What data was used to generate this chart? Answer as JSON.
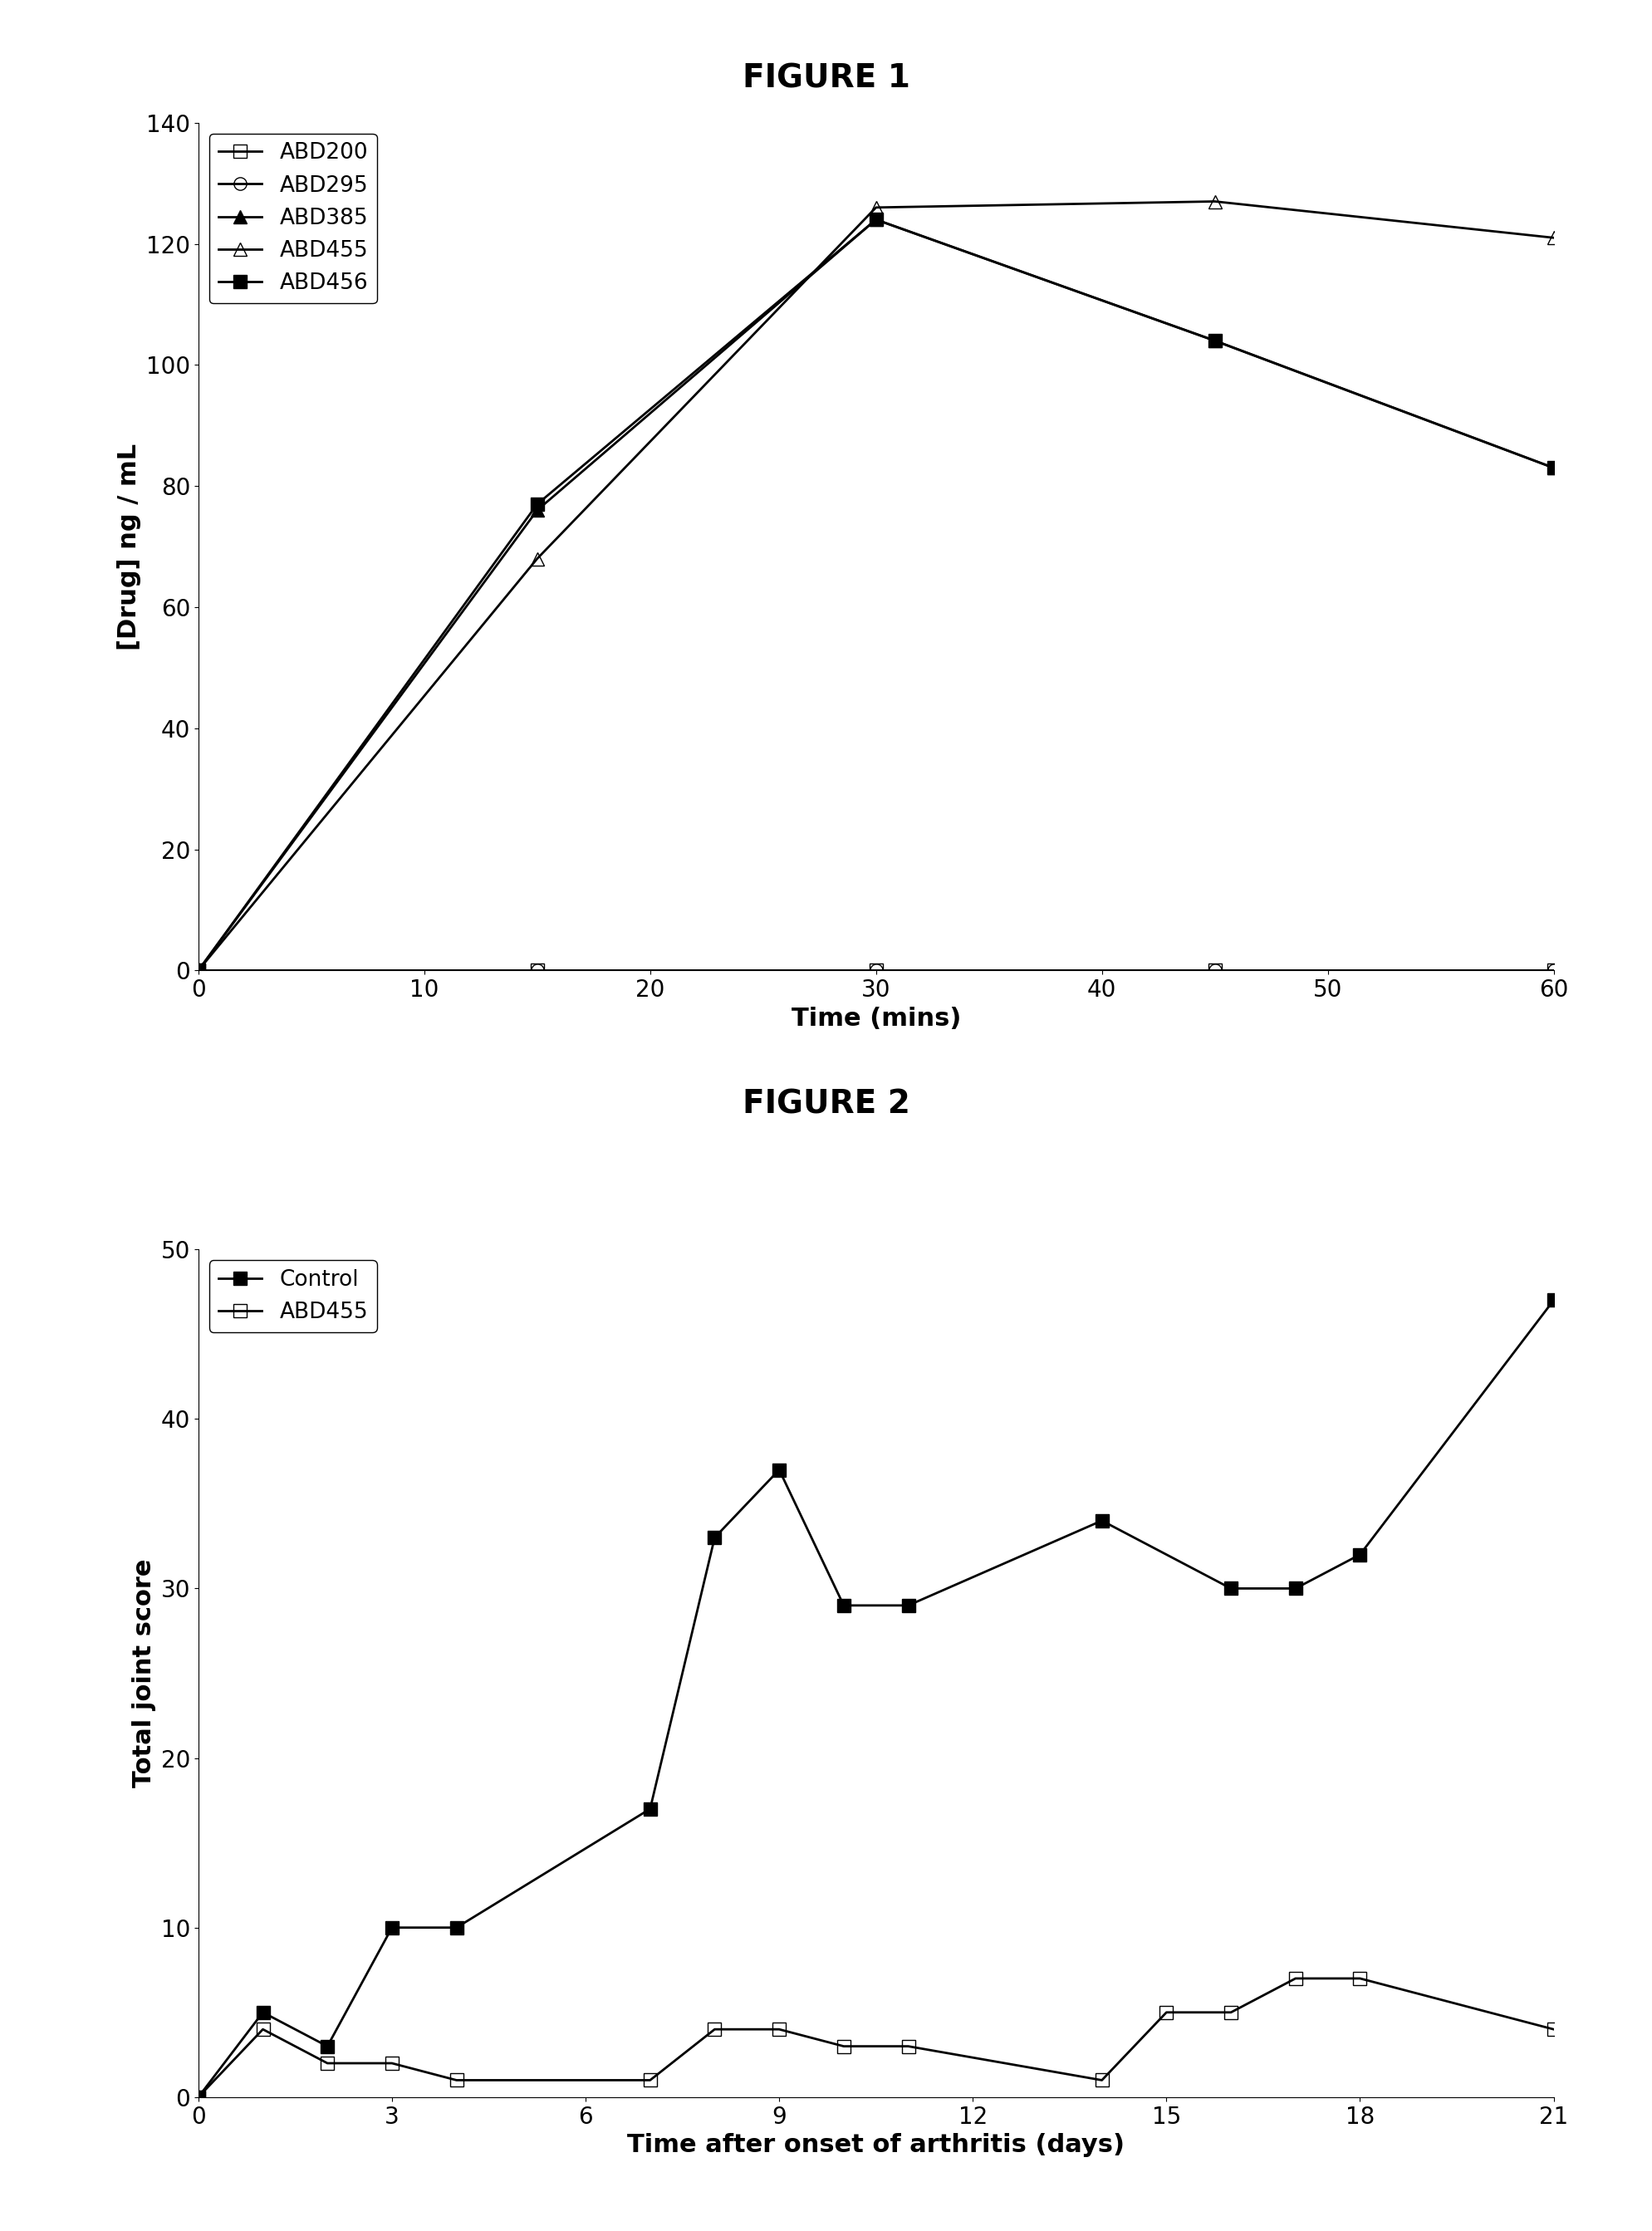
{
  "fig1": {
    "title": "FIGURE 1",
    "xlabel": "Time (mins)",
    "ylabel": "[Drug] ng / mL",
    "ylim": [
      0,
      140
    ],
    "yticks": [
      0,
      20,
      40,
      60,
      80,
      100,
      120,
      140
    ],
    "xlim": [
      0,
      60
    ],
    "xticks": [
      0,
      10,
      20,
      30,
      40,
      50,
      60
    ],
    "series": [
      {
        "label": "ABD200",
        "x": [
          0,
          15,
          30,
          45,
          60
        ],
        "y": [
          0,
          0,
          0,
          0,
          0
        ],
        "marker": "s",
        "fillstyle": "none",
        "color": "black",
        "linewidth": 2.0,
        "markersize": 11
      },
      {
        "label": "ABD295",
        "x": [
          0,
          15,
          30,
          45,
          60
        ],
        "y": [
          0,
          0,
          0,
          0,
          0
        ],
        "marker": "o",
        "fillstyle": "none",
        "color": "black",
        "linewidth": 2.0,
        "markersize": 11
      },
      {
        "label": "ABD385",
        "x": [
          0,
          15,
          30,
          45,
          60
        ],
        "y": [
          0,
          76,
          124,
          104,
          83
        ],
        "marker": "^",
        "fillstyle": "full",
        "color": "black",
        "linewidth": 2.0,
        "markersize": 11
      },
      {
        "label": "ABD455",
        "x": [
          0,
          15,
          30,
          45,
          60
        ],
        "y": [
          0,
          68,
          126,
          127,
          121
        ],
        "marker": "^",
        "fillstyle": "none",
        "color": "black",
        "linewidth": 2.0,
        "markersize": 11
      },
      {
        "label": "ABD456",
        "x": [
          0,
          15,
          30,
          45,
          60
        ],
        "y": [
          0,
          77,
          124,
          104,
          83
        ],
        "marker": "s",
        "fillstyle": "full",
        "color": "black",
        "linewidth": 2.0,
        "markersize": 11
      }
    ]
  },
  "fig2": {
    "title": "FIGURE 2",
    "xlabel": "Time after onset of arthritis (days)",
    "ylabel": "Total joint score",
    "ylim": [
      0,
      50
    ],
    "yticks": [
      0,
      10,
      20,
      30,
      40,
      50
    ],
    "xlim": [
      0,
      21
    ],
    "xticks": [
      0,
      3,
      6,
      9,
      12,
      15,
      18,
      21
    ],
    "series": [
      {
        "label": "Control",
        "x": [
          0,
          1,
          2,
          3,
          4,
          7,
          8,
          9,
          10,
          11,
          14,
          16,
          17,
          18,
          21
        ],
        "y": [
          0,
          5,
          3,
          10,
          10,
          17,
          33,
          37,
          29,
          29,
          34,
          30,
          30,
          32,
          47
        ],
        "marker": "s",
        "fillstyle": "full",
        "color": "black",
        "linewidth": 2.0,
        "markersize": 11
      },
      {
        "label": "ABD455",
        "x": [
          0,
          1,
          2,
          3,
          4,
          7,
          8,
          9,
          10,
          11,
          14,
          15,
          16,
          17,
          18,
          21
        ],
        "y": [
          0,
          4,
          2,
          2,
          1,
          1,
          4,
          4,
          3,
          3,
          1,
          5,
          5,
          7,
          7,
          4
        ],
        "marker": "s",
        "fillstyle": "none",
        "color": "black",
        "linewidth": 2.0,
        "markersize": 11
      }
    ]
  },
  "background_color": "#ffffff",
  "figure_title_fontsize": 28,
  "axis_label_fontsize": 22,
  "tick_fontsize": 20,
  "legend_fontsize": 19
}
